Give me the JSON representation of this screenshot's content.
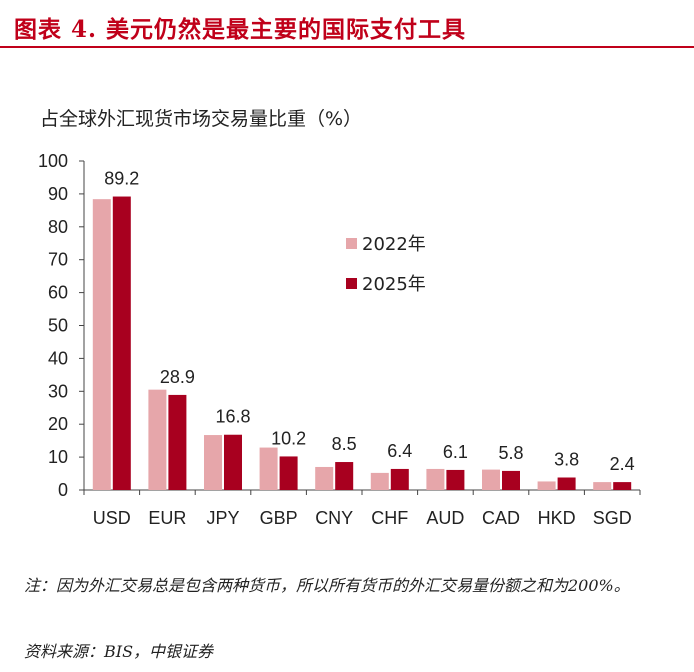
{
  "figure": {
    "title": "图表 4. 美元仍然是最主要的国际支付工具",
    "subtitle": "占全球外汇现货市场交易量比重（%）",
    "note": "注：因为外汇交易总是包含两种货币，所以所有货币的外汇交易量份额之和为200%。",
    "source": "资料来源：BIS，中银证券"
  },
  "colors": {
    "title": "#c0001a",
    "series_2022": "#e6a6aa",
    "series_2025": "#a8001f",
    "axis": "#444444"
  },
  "chart_data": {
    "type": "bar",
    "title": "占全球外汇现货市场交易量比重（%）",
    "categories": [
      "USD",
      "EUR",
      "JPY",
      "GBP",
      "CNY",
      "CHF",
      "AUD",
      "CAD",
      "HKD",
      "SGD"
    ],
    "series": [
      {
        "name": "2022年",
        "values": [
          88.4,
          30.5,
          16.7,
          12.9,
          7.0,
          5.2,
          6.4,
          6.2,
          2.6,
          2.4
        ]
      },
      {
        "name": "2025年",
        "values": [
          89.2,
          28.9,
          16.8,
          10.2,
          8.5,
          6.4,
          6.1,
          5.8,
          3.8,
          2.4
        ]
      }
    ],
    "data_labels": [
      "89.2",
      "28.9",
      "16.8",
      "10.2",
      "8.5",
      "6.4",
      "6.1",
      "5.8",
      "3.8",
      "2.4"
    ],
    "ylim": [
      0,
      100
    ],
    "yticks": [
      0,
      10,
      20,
      30,
      40,
      50,
      60,
      70,
      80,
      90,
      100
    ],
    "grid": false,
    "legend_position": "center-right",
    "xlabel": "",
    "ylabel": ""
  }
}
